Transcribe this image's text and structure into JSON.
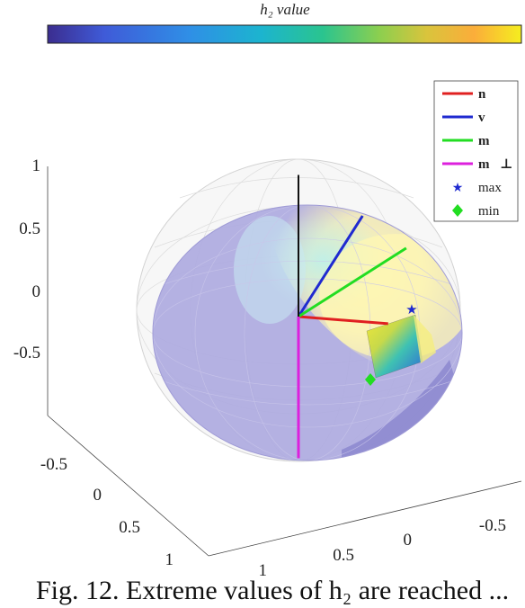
{
  "chart_data": {
    "type": "3d-surface",
    "title": "",
    "colorbar": {
      "label": "h₂ value",
      "colors": [
        "#3b2d8f",
        "#3f5bd8",
        "#2f8fe6",
        "#1cb4cf",
        "#2ac48f",
        "#8ccf4f",
        "#d9c43c",
        "#fbad3a",
        "#f5ee1f"
      ]
    },
    "legend": {
      "placement": "top-right",
      "items": [
        {
          "label": "n⃗",
          "color": "#e02020",
          "marker": "line"
        },
        {
          "label": "v⃗",
          "color": "#1f2ad0",
          "marker": "line"
        },
        {
          "label": "m⃗",
          "color": "#22dd22",
          "marker": "line"
        },
        {
          "label": "m⃗⊥",
          "color": "#dd20dd",
          "marker": "line"
        },
        {
          "label": "max",
          "color": "#1f2ad0",
          "marker": "star"
        },
        {
          "label": "min",
          "color": "#22dd22",
          "marker": "diamond"
        }
      ]
    },
    "axes": {
      "z_ticks": [
        "1",
        "0.5",
        "0",
        "-0.5"
      ],
      "x_ticks": [
        "-0.5",
        "0",
        "0.5",
        "1"
      ],
      "y_ticks": [
        "1",
        "0.5",
        "0",
        "-0.5"
      ],
      "grid": true
    },
    "vectors": [
      {
        "name": "n",
        "color": "#e02020",
        "direction": [
          0.0,
          0.6,
          -0.05
        ]
      },
      {
        "name": "v",
        "color": "#1f2ad0",
        "direction": [
          0.35,
          0.3,
          0.75
        ]
      },
      {
        "name": "m",
        "color": "#22dd22",
        "direction": [
          0.6,
          0.5,
          0.55
        ]
      },
      {
        "name": "m_perp",
        "color": "#dd20dd",
        "direction": [
          0.0,
          0.0,
          -1.0
        ]
      },
      {
        "name": "z-axis",
        "color": "#111111",
        "direction": [
          0.0,
          0.0,
          1.0
        ]
      }
    ],
    "markers": [
      {
        "name": "max",
        "color": "#1f2ad0",
        "shape": "star"
      },
      {
        "name": "min",
        "color": "#22dd22",
        "shape": "diamond"
      }
    ]
  },
  "caption": "Fig. 12. Extreme values of h₂ are reached ..."
}
